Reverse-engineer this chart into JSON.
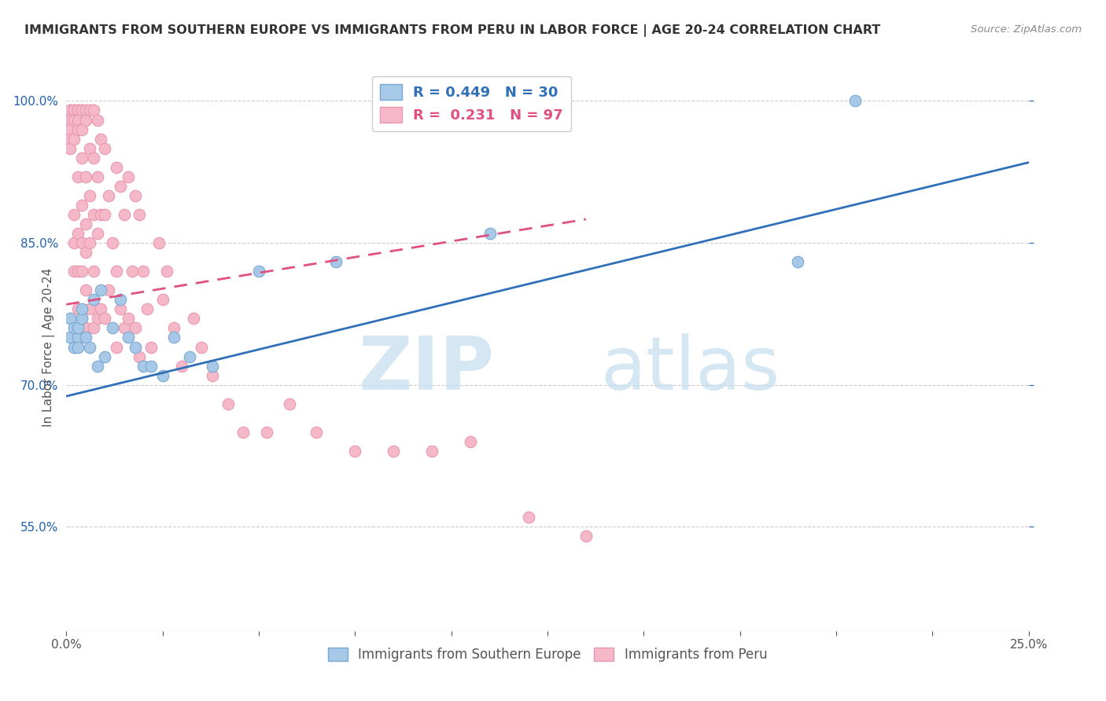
{
  "title": "IMMIGRANTS FROM SOUTHERN EUROPE VS IMMIGRANTS FROM PERU IN LABOR FORCE | AGE 20-24 CORRELATION CHART",
  "source": "Source: ZipAtlas.com",
  "ylabel_label": "In Labor Force | Age 20-24",
  "blue_R": 0.449,
  "blue_N": 30,
  "pink_R": 0.231,
  "pink_N": 97,
  "blue_color": "#a8c8e8",
  "pink_color": "#f4b8c8",
  "blue_line_color": "#3070b8",
  "pink_line_color": "#e05080",
  "pink_line_dash": [
    6,
    4
  ],
  "watermark_zip": "ZIP",
  "watermark_atlas": "atlas",
  "legend_blue_label": "Immigrants from Southern Europe",
  "legend_pink_label": "Immigrants from Peru",
  "xlim": [
    0.0,
    0.25
  ],
  "ylim": [
    0.44,
    1.04
  ],
  "ytick_vals": [
    0.55,
    0.7,
    0.85,
    1.0
  ],
  "ytick_labels": [
    "55.0%",
    "70.0%",
    "85.0%",
    "100.0%"
  ],
  "xtick_vals": [
    0.0,
    0.25
  ],
  "xtick_labels": [
    "0.0%",
    "25.0%"
  ],
  "blue_scatter_x": [
    0.001,
    0.001,
    0.002,
    0.002,
    0.003,
    0.003,
    0.003,
    0.004,
    0.004,
    0.005,
    0.006,
    0.007,
    0.008,
    0.009,
    0.01,
    0.012,
    0.014,
    0.016,
    0.018,
    0.02,
    0.022,
    0.025,
    0.028,
    0.032,
    0.038,
    0.05,
    0.07,
    0.11,
    0.19,
    0.205
  ],
  "blue_scatter_y": [
    0.75,
    0.77,
    0.74,
    0.76,
    0.75,
    0.74,
    0.76,
    0.77,
    0.78,
    0.75,
    0.74,
    0.79,
    0.72,
    0.8,
    0.73,
    0.76,
    0.79,
    0.75,
    0.74,
    0.72,
    0.72,
    0.71,
    0.75,
    0.73,
    0.72,
    0.82,
    0.83,
    0.86,
    0.83,
    1.0
  ],
  "pink_scatter_x": [
    0.001,
    0.001,
    0.001,
    0.001,
    0.001,
    0.001,
    0.002,
    0.002,
    0.002,
    0.002,
    0.002,
    0.002,
    0.002,
    0.003,
    0.003,
    0.003,
    0.003,
    0.003,
    0.003,
    0.003,
    0.003,
    0.003,
    0.004,
    0.004,
    0.004,
    0.004,
    0.004,
    0.004,
    0.004,
    0.004,
    0.004,
    0.005,
    0.005,
    0.005,
    0.005,
    0.005,
    0.005,
    0.005,
    0.006,
    0.006,
    0.006,
    0.006,
    0.006,
    0.007,
    0.007,
    0.007,
    0.007,
    0.007,
    0.008,
    0.008,
    0.008,
    0.008,
    0.009,
    0.009,
    0.009,
    0.01,
    0.01,
    0.01,
    0.011,
    0.011,
    0.012,
    0.013,
    0.013,
    0.013,
    0.014,
    0.014,
    0.015,
    0.015,
    0.016,
    0.016,
    0.017,
    0.018,
    0.018,
    0.019,
    0.019,
    0.02,
    0.021,
    0.022,
    0.024,
    0.025,
    0.026,
    0.028,
    0.03,
    0.033,
    0.035,
    0.038,
    0.042,
    0.046,
    0.052,
    0.058,
    0.065,
    0.075,
    0.085,
    0.095,
    0.105,
    0.12,
    0.135
  ],
  "pink_scatter_y": [
    0.99,
    0.99,
    0.98,
    0.97,
    0.96,
    0.95,
    0.99,
    0.99,
    0.98,
    0.96,
    0.88,
    0.85,
    0.82,
    0.99,
    0.99,
    0.98,
    0.97,
    0.92,
    0.86,
    0.82,
    0.78,
    0.76,
    0.99,
    0.99,
    0.97,
    0.94,
    0.89,
    0.85,
    0.82,
    0.77,
    0.75,
    0.99,
    0.98,
    0.92,
    0.87,
    0.84,
    0.8,
    0.76,
    0.99,
    0.95,
    0.9,
    0.85,
    0.78,
    0.99,
    0.94,
    0.88,
    0.82,
    0.76,
    0.98,
    0.92,
    0.86,
    0.77,
    0.96,
    0.88,
    0.78,
    0.95,
    0.88,
    0.77,
    0.9,
    0.8,
    0.85,
    0.93,
    0.82,
    0.74,
    0.91,
    0.78,
    0.88,
    0.76,
    0.92,
    0.77,
    0.82,
    0.9,
    0.76,
    0.88,
    0.73,
    0.82,
    0.78,
    0.74,
    0.85,
    0.79,
    0.82,
    0.76,
    0.72,
    0.77,
    0.74,
    0.71,
    0.68,
    0.65,
    0.65,
    0.68,
    0.65,
    0.63,
    0.63,
    0.63,
    0.64,
    0.56,
    0.54
  ],
  "blue_line_x0": 0.0,
  "blue_line_x1": 0.25,
  "blue_line_y0": 0.688,
  "blue_line_y1": 0.935,
  "pink_line_x0": 0.0,
  "pink_line_x1": 0.135,
  "pink_line_y0": 0.785,
  "pink_line_y1": 0.875
}
